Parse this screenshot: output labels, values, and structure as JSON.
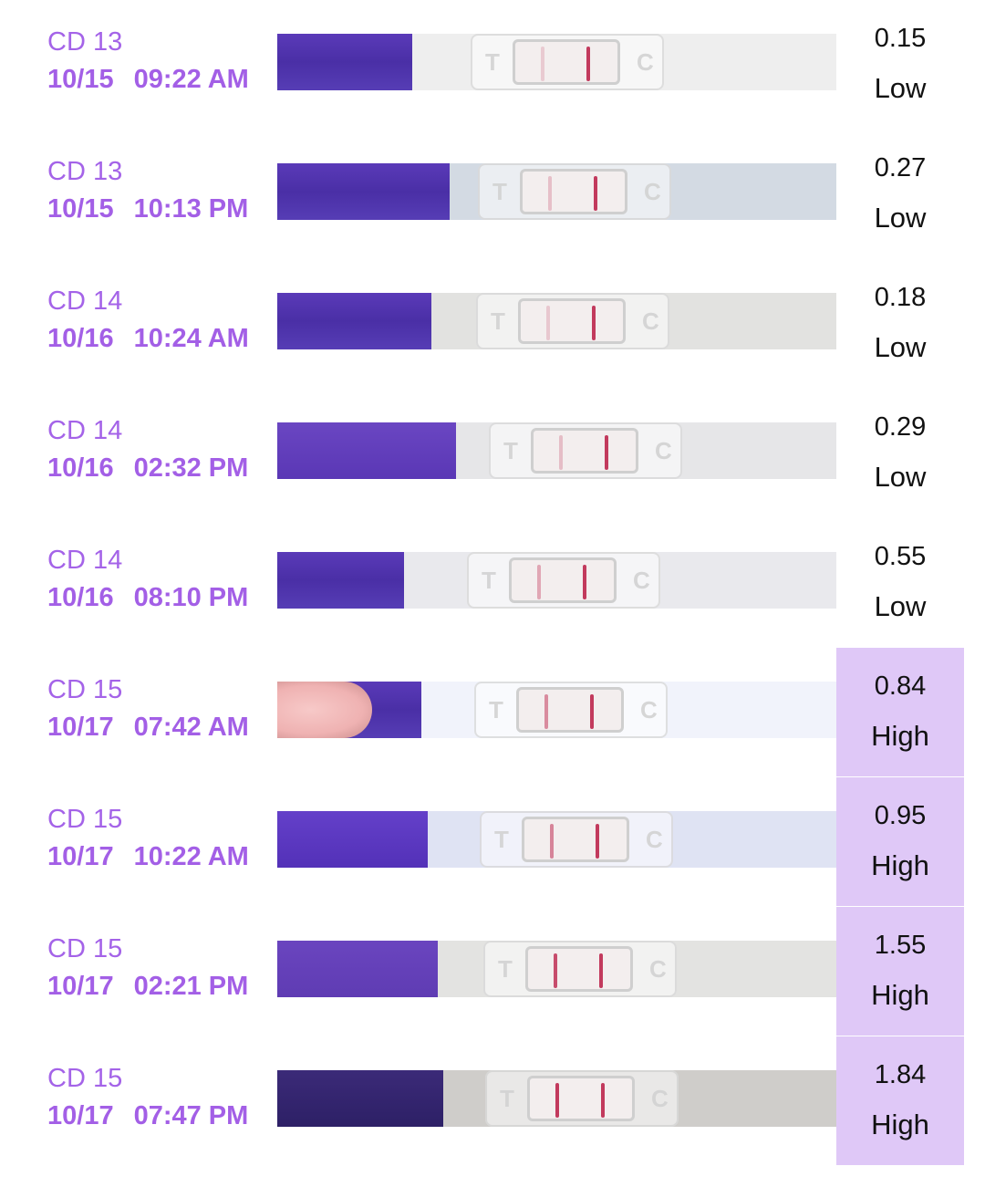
{
  "colors": {
    "label_purple": "#a463e8",
    "high_background": "#dfc8f7",
    "strip_handle": "#4a2fa6",
    "test_line": "#c23a5d"
  },
  "icons": {
    "test_strip": "ovulation-test-strip-photo-icon"
  },
  "tests": [
    {
      "cycle_day": "CD 13",
      "date": "10/15",
      "time": "09:22 AM",
      "value": "0.15",
      "level": "Low",
      "test_line_intensity": 0.15
    },
    {
      "cycle_day": "CD 13",
      "date": "10/15",
      "time": "10:13 PM",
      "value": "0.27",
      "level": "Low",
      "test_line_intensity": 0.27
    },
    {
      "cycle_day": "CD 14",
      "date": "10/16",
      "time": "10:24 AM",
      "value": "0.18",
      "level": "Low",
      "test_line_intensity": 0.18
    },
    {
      "cycle_day": "CD 14",
      "date": "10/16",
      "time": "02:32 PM",
      "value": "0.29",
      "level": "Low",
      "test_line_intensity": 0.29
    },
    {
      "cycle_day": "CD 14",
      "date": "10/16",
      "time": "08:10 PM",
      "value": "0.55",
      "level": "Low",
      "test_line_intensity": 0.55
    },
    {
      "cycle_day": "CD 15",
      "date": "10/17",
      "time": "07:42 AM",
      "value": "0.84",
      "level": "High",
      "test_line_intensity": 0.84
    },
    {
      "cycle_day": "CD 15",
      "date": "10/17",
      "time": "10:22 AM",
      "value": "0.95",
      "level": "High",
      "test_line_intensity": 0.95
    },
    {
      "cycle_day": "CD 15",
      "date": "10/17",
      "time": "02:21 PM",
      "value": "1.55",
      "level": "High",
      "test_line_intensity": 1.55
    },
    {
      "cycle_day": "CD 15",
      "date": "10/17",
      "time": "07:47 PM",
      "value": "1.84",
      "level": "High",
      "test_line_intensity": 1.84
    }
  ]
}
